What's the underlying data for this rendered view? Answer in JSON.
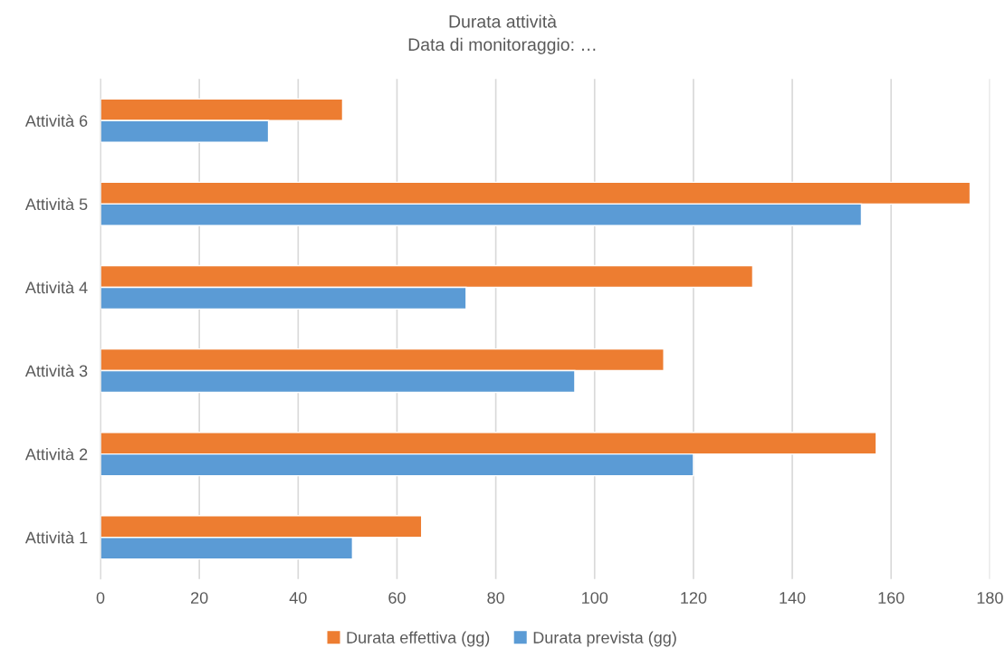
{
  "chart_data": {
    "type": "bar",
    "orientation": "horizontal",
    "title": "Durata attività",
    "subtitle": "Data di monitoraggio: …",
    "categories": [
      "Attività 6",
      "Attività 5",
      "Attività 4",
      "Attività 3",
      "Attività 2",
      "Attività 1"
    ],
    "series": [
      {
        "name": "Durata effettiva (gg)",
        "color": "#ed7d31",
        "values": [
          49,
          176,
          132,
          114,
          157,
          65
        ]
      },
      {
        "name": "Durata prevista (gg)",
        "color": "#5b9bd5",
        "values": [
          34,
          154,
          74,
          96,
          120,
          51
        ]
      }
    ],
    "xlim": [
      0,
      180
    ],
    "xticks": [
      0,
      20,
      40,
      60,
      80,
      100,
      120,
      140,
      160,
      180
    ],
    "grid": "x",
    "legend": "bottom"
  }
}
